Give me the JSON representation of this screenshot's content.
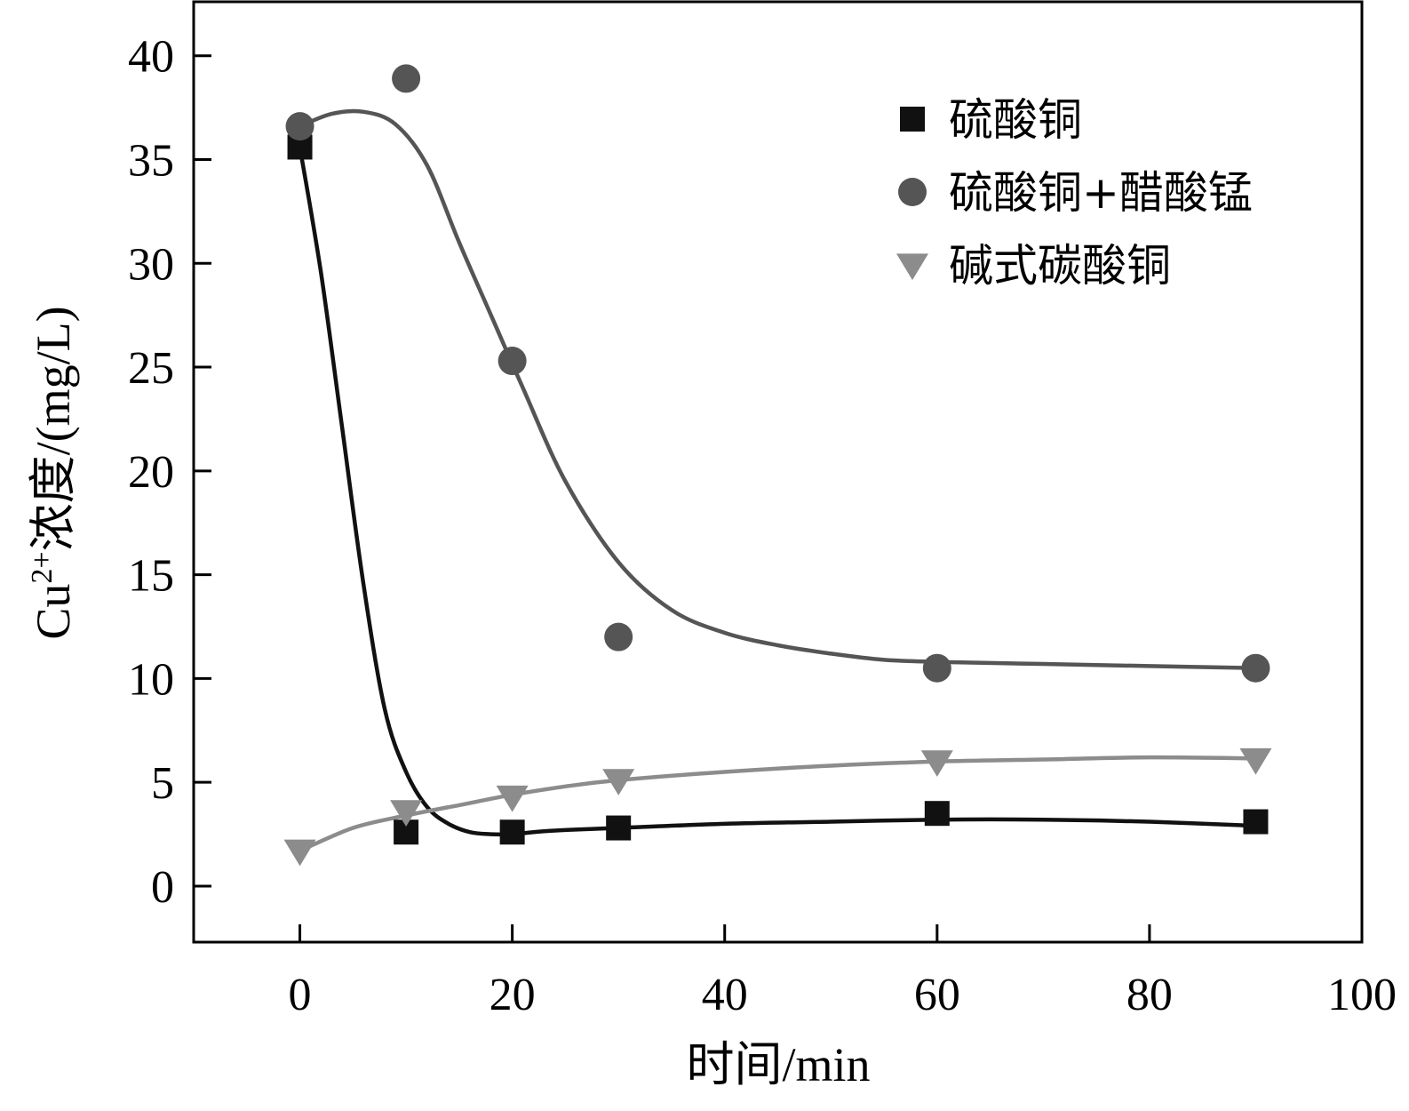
{
  "chart_data": {
    "type": "scatter",
    "xlabel": "时间/min",
    "ylabel_main": "Cu",
    "ylabel_sup": "2+",
    "ylabel_rest": "浓度/(mg/L)",
    "xlim": [
      -10,
      100
    ],
    "ylim": [
      -2.7,
      42.6
    ],
    "xticks": [
      0,
      20,
      40,
      60,
      80,
      100
    ],
    "yticks": [
      0,
      5,
      10,
      15,
      20,
      25,
      30,
      35,
      40
    ],
    "grid": false,
    "legend_position": "top-right",
    "series": [
      {
        "name": "硫酸铜",
        "marker": "square",
        "color": "#111111",
        "x": [
          0,
          10,
          20,
          30,
          60,
          90
        ],
        "y": [
          35.6,
          2.6,
          2.6,
          2.8,
          3.5,
          3.1
        ],
        "curve_x": [
          0,
          2,
          4,
          6,
          8,
          10,
          12,
          14,
          16,
          18,
          20,
          22,
          25,
          30,
          40,
          50,
          60,
          70,
          80,
          90
        ],
        "curve_y": [
          35.6,
          29.5,
          22,
          14.5,
          8.5,
          5.5,
          3.8,
          3.0,
          2.6,
          2.5,
          2.5,
          2.6,
          2.7,
          2.8,
          3.0,
          3.1,
          3.2,
          3.2,
          3.1,
          2.9
        ]
      },
      {
        "name": "硫酸铜+醋酸锰",
        "marker": "circle",
        "color": "#555555",
        "x": [
          0,
          10,
          20,
          30,
          60,
          90
        ],
        "y": [
          36.6,
          38.9,
          25.3,
          12.0,
          10.5,
          10.5
        ],
        "curve_x": [
          0,
          3,
          6,
          9,
          12,
          15,
          18,
          21,
          25,
          30,
          35,
          40,
          45,
          50,
          55,
          60,
          70,
          80,
          90
        ],
        "curve_y": [
          36.6,
          37.2,
          37.3,
          36.7,
          34.7,
          31.0,
          27.5,
          24.0,
          19.5,
          15.6,
          13.3,
          12.2,
          11.6,
          11.2,
          10.9,
          10.8,
          10.7,
          10.6,
          10.5
        ]
      },
      {
        "name": "碱式碳酸铜",
        "marker": "triangle-down",
        "color": "#8c8c8c",
        "x": [
          0,
          10,
          20,
          30,
          60,
          90
        ],
        "y": [
          1.7,
          3.6,
          4.3,
          5.1,
          6.0,
          6.1
        ],
        "curve_x": [
          0,
          5,
          10,
          15,
          20,
          25,
          30,
          40,
          50,
          60,
          70,
          80,
          90
        ],
        "curve_y": [
          1.7,
          2.8,
          3.4,
          3.9,
          4.4,
          4.8,
          5.1,
          5.5,
          5.8,
          6.0,
          6.1,
          6.2,
          6.15
        ]
      }
    ]
  }
}
